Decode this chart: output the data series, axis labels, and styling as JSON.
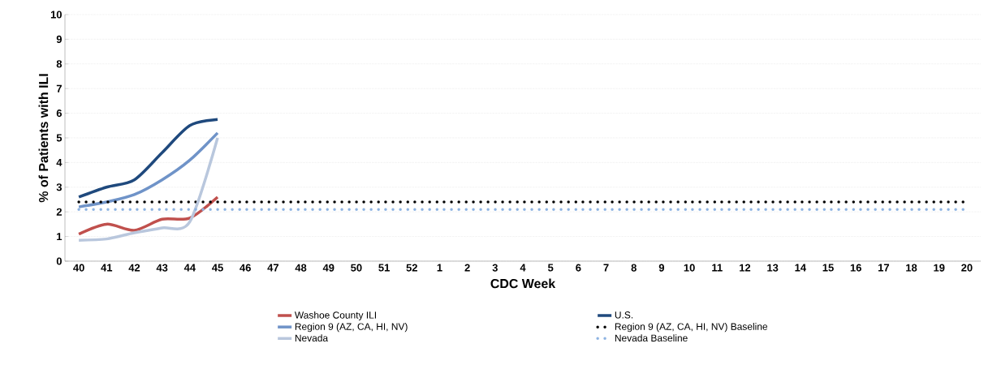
{
  "chart_data": {
    "type": "line",
    "xlabel": "CDC Week",
    "ylabel": "% of Patients with ILI",
    "categories": [
      "40",
      "41",
      "42",
      "43",
      "44",
      "45",
      "46",
      "47",
      "48",
      "49",
      "50",
      "51",
      "52",
      "1",
      "2",
      "3",
      "4",
      "5",
      "6",
      "7",
      "8",
      "9",
      "10",
      "11",
      "12",
      "13",
      "14",
      "15",
      "16",
      "17",
      "18",
      "19",
      "20"
    ],
    "series": [
      {
        "name": "Washoe County ILI",
        "color": "#c0504d",
        "values": [
          1.1,
          1.5,
          1.25,
          1.7,
          1.75,
          2.6,
          null,
          null,
          null,
          null,
          null,
          null,
          null,
          null,
          null,
          null,
          null,
          null,
          null,
          null,
          null,
          null,
          null,
          null,
          null,
          null,
          null,
          null,
          null,
          null,
          null,
          null,
          null
        ]
      },
      {
        "name": "U.S.",
        "color": "#1f497d",
        "values": [
          2.6,
          3.0,
          3.3,
          4.4,
          5.5,
          5.75,
          null,
          null,
          null,
          null,
          null,
          null,
          null,
          null,
          null,
          null,
          null,
          null,
          null,
          null,
          null,
          null,
          null,
          null,
          null,
          null,
          null,
          null,
          null,
          null,
          null,
          null,
          null
        ]
      },
      {
        "name": "Region 9 (AZ, CA, HI, NV)",
        "color": "#6f93c8",
        "values": [
          2.2,
          2.4,
          2.7,
          3.3,
          4.1,
          5.2,
          null,
          null,
          null,
          null,
          null,
          null,
          null,
          null,
          null,
          null,
          null,
          null,
          null,
          null,
          null,
          null,
          null,
          null,
          null,
          null,
          null,
          null,
          null,
          null,
          null,
          null,
          null
        ]
      },
      {
        "name": "Region 9 (AZ, CA, HI, NV) Baseline",
        "color": "#000000",
        "line_style": "dotted",
        "values": [
          2.4,
          2.4,
          2.4,
          2.4,
          2.4,
          2.4,
          2.4,
          2.4,
          2.4,
          2.4,
          2.4,
          2.4,
          2.4,
          2.4,
          2.4,
          2.4,
          2.4,
          2.4,
          2.4,
          2.4,
          2.4,
          2.4,
          2.4,
          2.4,
          2.4,
          2.4,
          2.4,
          2.4,
          2.4,
          2.4,
          2.4,
          2.4,
          2.4
        ]
      },
      {
        "name": "Nevada",
        "color": "#b9c7dd",
        "values": [
          0.85,
          0.9,
          1.15,
          1.35,
          1.6,
          5.0,
          null,
          null,
          null,
          null,
          null,
          null,
          null,
          null,
          null,
          null,
          null,
          null,
          null,
          null,
          null,
          null,
          null,
          null,
          null,
          null,
          null,
          null,
          null,
          null,
          null,
          null,
          null
        ]
      },
      {
        "name": "Nevada Baseline",
        "color": "#8db3e2",
        "line_style": "dotted",
        "values": [
          2.1,
          2.1,
          2.1,
          2.1,
          2.1,
          2.1,
          2.1,
          2.1,
          2.1,
          2.1,
          2.1,
          2.1,
          2.1,
          2.1,
          2.1,
          2.1,
          2.1,
          2.1,
          2.1,
          2.1,
          2.1,
          2.1,
          2.1,
          2.1,
          2.1,
          2.1,
          2.1,
          2.1,
          2.1,
          2.1,
          2.1,
          2.1,
          2.1
        ]
      }
    ],
    "ylim": [
      0,
      10
    ],
    "yticks": [
      0,
      1,
      2,
      3,
      4,
      5,
      6,
      7,
      8,
      9,
      10
    ],
    "grid": "y",
    "legend": "bottom",
    "line_style": "solid",
    "marker": "none"
  }
}
